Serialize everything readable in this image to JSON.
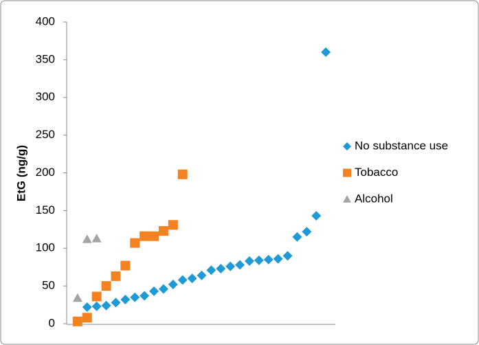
{
  "chart_data": {
    "type": "scatter",
    "y_label": "EtG (ng/g)",
    "xlim": [
      0,
      28
    ],
    "ylim": [
      0,
      400
    ],
    "yticks": [
      0,
      50,
      100,
      150,
      200,
      250,
      300,
      350,
      400
    ],
    "grid": false,
    "legend": "right",
    "series": [
      {
        "name": "No substance use",
        "color": "#1f9ad6",
        "marker": "diamond",
        "x": [
          2,
          3,
          4,
          5,
          6,
          7,
          8,
          9,
          10,
          11,
          12,
          13,
          14,
          15,
          16,
          17,
          18,
          19,
          20,
          21,
          22,
          23,
          24,
          25,
          26,
          27
        ],
        "values": [
          22,
          23,
          24,
          28,
          32,
          35,
          37,
          43,
          46,
          52,
          58,
          60,
          64,
          71,
          73,
          76,
          78,
          83,
          84,
          85,
          86,
          90,
          115,
          122,
          143,
          360
        ]
      },
      {
        "name": "Tobacco",
        "color": "#f58220",
        "marker": "square",
        "x": [
          1,
          2,
          3,
          4,
          5,
          6,
          7,
          8,
          9,
          10,
          11,
          12
        ],
        "values": [
          3,
          8,
          36,
          50,
          63,
          77,
          107,
          116,
          116,
          123,
          131,
          198
        ]
      },
      {
        "name": "Alcohol",
        "color": "#a5a5a5",
        "marker": "triangle",
        "x": [
          1,
          2,
          3
        ],
        "values": [
          34,
          112,
          113
        ]
      }
    ]
  }
}
